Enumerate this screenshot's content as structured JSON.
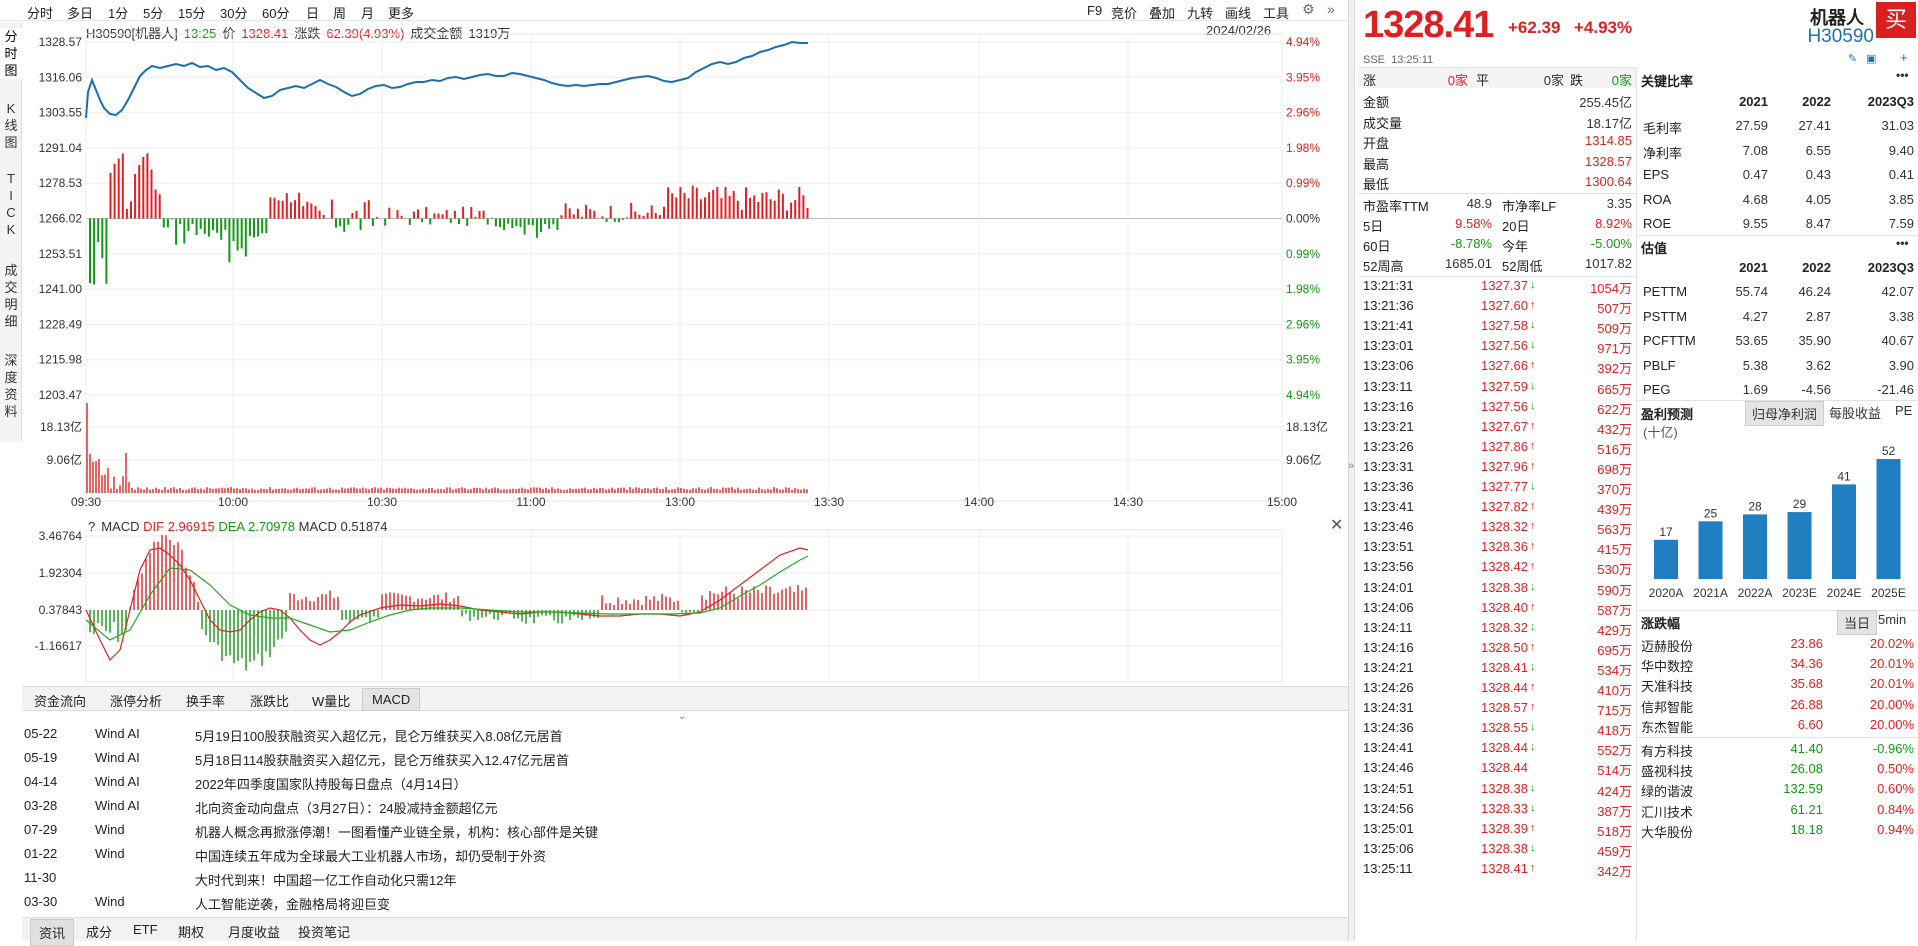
{
  "toolbar": {
    "tabs": [
      "分时",
      "多日",
      "1分",
      "5分",
      "15分",
      "30分",
      "60分",
      "日",
      "周",
      "月",
      "更多"
    ],
    "tools": [
      "F9",
      "竞价",
      "叠加",
      "九转",
      "画线",
      "工具"
    ]
  },
  "vertical_tabs": [
    "分时图",
    "K线图",
    "TICK",
    "成交明细",
    "深度资料"
  ],
  "infobar": {
    "code": "H30590[机器人]",
    "time": "13:25",
    "price_label": "价",
    "price": "1328.41",
    "change_label": "涨跌",
    "change": "62.39(4.93%)",
    "amount_label": "成交金额",
    "amount": "1319万",
    "date": "2024/02/26"
  },
  "price_axis": {
    "left": [
      "1328.57",
      "1316.06",
      "1303.55",
      "1291.04",
      "1278.53",
      "1266.02",
      "1253.51",
      "1241.00",
      "1228.49",
      "1215.98",
      "1203.47"
    ],
    "right": [
      "4.94%",
      "3.95%",
      "2.96%",
      "1.98%",
      "0.99%",
      "0.00%",
      "0.99%",
      "1.98%",
      "2.96%",
      "3.95%",
      "4.94%"
    ]
  },
  "volume_axis": {
    "left": [
      "18.13亿",
      "9.06亿"
    ],
    "right": [
      "18.13亿",
      "9.06亿"
    ]
  },
  "time_axis": [
    "09:30",
    "10:00",
    "10:30",
    "11:00",
    "13:00",
    "13:30",
    "14:00",
    "14:30",
    "15:00"
  ],
  "macd": {
    "help": "?",
    "name": "MACD",
    "dif_label": "DIF",
    "dif": "2.96915",
    "dea_label": "DEA",
    "dea": "2.70978",
    "macd_label": "MACD",
    "macd": "0.51874",
    "axis": [
      "3.46764",
      "1.92304",
      "0.37843",
      "-1.16617"
    ]
  },
  "indicator_tabs": [
    "资金流向",
    "涨停分析",
    "换手率",
    "涨跌比",
    "W量比",
    "MACD"
  ],
  "news": [
    {
      "date": "05-22",
      "source": "Wind AI",
      "title": "5月19日100股获融资买入超亿元，昆仑万维获买入8.08亿元居首"
    },
    {
      "date": "05-19",
      "source": "Wind AI",
      "title": "5月18日114股获融资买入超亿元，昆仑万维获买入12.47亿元居首"
    },
    {
      "date": "04-14",
      "source": "Wind AI",
      "title": "2022年四季度国家队持股每日盘点（4月14日）"
    },
    {
      "date": "03-28",
      "source": "Wind AI",
      "title": "北向资金动向盘点（3月27日）：24股减持金额超亿元"
    },
    {
      "date": "07-29",
      "source": "Wind",
      "title": "机器人概念再掀涨停潮！一图看懂产业链全景，机构：核心部件是关键"
    },
    {
      "date": "01-22",
      "source": "Wind",
      "title": "中国连续五年成为全球最大工业机器人市场，却仍受制于外资"
    },
    {
      "date": "11-30",
      "source": "",
      "title": "大时代到来！中国超一亿工作自动化只需12年"
    },
    {
      "date": "03-30",
      "source": "Wind",
      "title": "人工智能逆袭，金融格局将迎巨变"
    }
  ],
  "news_tabs": [
    "资讯",
    "成分",
    "ETF",
    "期权",
    "月度收益",
    "投资笔记"
  ],
  "quote": {
    "price": "1328.41",
    "change": "+62.39",
    "pct": "+4.93%",
    "name": "机器人",
    "code": "H30590",
    "buy": "买",
    "exchange": "SSE",
    "time": "13:25:11",
    "breadth": {
      "up_label": "涨",
      "up": "0家",
      "flat_label": "平",
      "flat": "0家",
      "down_label": "跌",
      "down": "0家"
    },
    "stats": [
      [
        "金额",
        "255.45亿"
      ],
      [
        "成交量",
        "18.17亿"
      ],
      [
        "开盘",
        "1314.85"
      ],
      [
        "最高",
        "1328.57"
      ],
      [
        "最低",
        "1300.64"
      ]
    ],
    "valuation": [
      [
        "市盈率TTM",
        "48.9",
        "市净率LF",
        "3.35"
      ],
      [
        "5日",
        "9.58%",
        "20日",
        "8.92%"
      ],
      [
        "60日",
        "-8.78%",
        "今年",
        "-5.00%"
      ],
      [
        "52周高",
        "1685.01",
        "52周低",
        "1017.82"
      ]
    ],
    "ticks": [
      [
        "13:21:31",
        "1327.37",
        "down",
        "1054万"
      ],
      [
        "13:21:36",
        "1327.60",
        "up",
        "507万"
      ],
      [
        "13:21:41",
        "1327.58",
        "down",
        "509万"
      ],
      [
        "13:23:01",
        "1327.56",
        "down",
        "971万"
      ],
      [
        "13:23:06",
        "1327.66",
        "up",
        "392万"
      ],
      [
        "13:23:11",
        "1327.59",
        "down",
        "665万"
      ],
      [
        "13:23:16",
        "1327.56",
        "down",
        "622万"
      ],
      [
        "13:23:21",
        "1327.67",
        "up",
        "432万"
      ],
      [
        "13:23:26",
        "1327.86",
        "up",
        "516万"
      ],
      [
        "13:23:31",
        "1327.96",
        "up",
        "698万"
      ],
      [
        "13:23:36",
        "1327.77",
        "down",
        "370万"
      ],
      [
        "13:23:41",
        "1327.82",
        "up",
        "439万"
      ],
      [
        "13:23:46",
        "1328.32",
        "up",
        "563万"
      ],
      [
        "13:23:51",
        "1328.36",
        "up",
        "415万"
      ],
      [
        "13:23:56",
        "1328.42",
        "up",
        "530万"
      ],
      [
        "13:24:01",
        "1328.38",
        "down",
        "590万"
      ],
      [
        "13:24:06",
        "1328.40",
        "up",
        "587万"
      ],
      [
        "13:24:11",
        "1328.32",
        "down",
        "429万"
      ],
      [
        "13:24:16",
        "1328.50",
        "up",
        "695万"
      ],
      [
        "13:24:21",
        "1328.41",
        "down",
        "534万"
      ],
      [
        "13:24:26",
        "1328.44",
        "up",
        "410万"
      ],
      [
        "13:24:31",
        "1328.57",
        "up",
        "715万"
      ],
      [
        "13:24:36",
        "1328.55",
        "down",
        "418万"
      ],
      [
        "13:24:41",
        "1328.44",
        "down",
        "552万"
      ],
      [
        "13:24:46",
        "1328.44",
        "none",
        "514万"
      ],
      [
        "13:24:51",
        "1328.38",
        "down",
        "424万"
      ],
      [
        "13:24:56",
        "1328.33",
        "down",
        "387万"
      ],
      [
        "13:25:01",
        "1328.39",
        "up",
        "518万"
      ],
      [
        "13:25:06",
        "1328.38",
        "down",
        "459万"
      ],
      [
        "13:25:11",
        "1328.41",
        "up",
        "342万"
      ]
    ]
  },
  "ratios": {
    "title": "关键比率",
    "years": [
      "2021",
      "2022",
      "2023Q3"
    ],
    "rows": [
      [
        "毛利率",
        "27.59",
        "27.41",
        "31.03"
      ],
      [
        "净利率",
        "7.08",
        "6.55",
        "9.40"
      ],
      [
        "EPS",
        "0.47",
        "0.43",
        "0.41"
      ],
      [
        "ROA",
        "4.68",
        "4.05",
        "3.85"
      ],
      [
        "ROE",
        "9.55",
        "8.47",
        "7.59"
      ]
    ]
  },
  "estimate": {
    "title": "估值",
    "years": [
      "2021",
      "2022",
      "2023Q3"
    ],
    "rows": [
      [
        "PETTM",
        "55.74",
        "46.24",
        "42.07"
      ],
      [
        "PSTTM",
        "4.27",
        "2.87",
        "3.38"
      ],
      [
        "PCFTTM",
        "53.65",
        "35.90",
        "40.67"
      ],
      [
        "PBLF",
        "5.38",
        "3.62",
        "3.90"
      ],
      [
        "PEG",
        "1.69",
        "-4.56",
        "-21.46"
      ]
    ]
  },
  "forecast": {
    "title": "盈利预测",
    "tabs": [
      "归母净利润",
      "每股收益",
      "PE"
    ],
    "unit": "(十亿)",
    "more": "•••"
  },
  "chart_data": {
    "type": "bar",
    "categories": [
      "2020A",
      "2021A",
      "2022A",
      "2023E",
      "2024E",
      "2025E"
    ],
    "values": [
      17,
      25,
      28,
      29,
      41,
      52
    ],
    "ylim": [
      0,
      52
    ]
  },
  "movers": {
    "title": "涨跌幅",
    "tabs": [
      "当日",
      "5min"
    ],
    "rows": [
      [
        "迈赫股份",
        "23.86",
        "20.02%"
      ],
      [
        "华中数控",
        "34.36",
        "20.01%"
      ],
      [
        "天准科技",
        "35.68",
        "20.01%"
      ],
      [
        "信邦智能",
        "26.88",
        "20.00%"
      ],
      [
        "东杰智能",
        "6.60",
        "20.00%"
      ],
      [
        "有方科技",
        "41.40",
        "-0.96%"
      ],
      [
        "盛视科技",
        "26.08",
        "0.50%"
      ],
      [
        "绿的谐波",
        "132.59",
        "0.60%"
      ],
      [
        "汇川技术",
        "61.21",
        "0.84%"
      ],
      [
        "大华股份",
        "18.18",
        "0.94%"
      ]
    ]
  }
}
